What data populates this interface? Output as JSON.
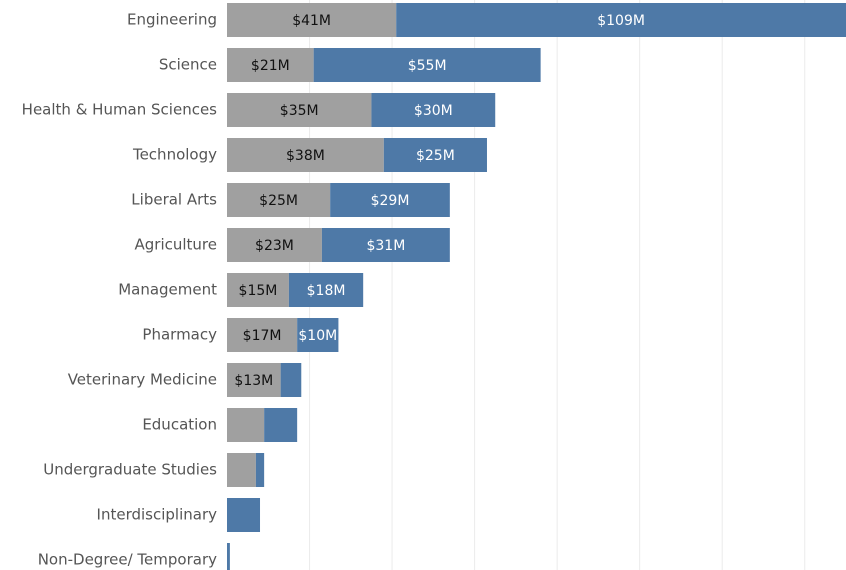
{
  "chart_data": {
    "type": "stacked-bar-horizontal",
    "categories": [
      "Engineering",
      "Science",
      "Health & Human Sciences",
      "Technology",
      "Liberal Arts",
      "Agriculture",
      "Management",
      "Pharmacy",
      "Veterinary Medicine",
      "Education",
      "Undergraduate Studies",
      "Interdisciplinary",
      "Non-Degree/ Temporary"
    ],
    "series": [
      {
        "color": "#a0a0a0",
        "values": [
          41,
          21,
          35,
          38,
          25,
          23,
          15,
          17,
          13,
          9,
          7,
          0,
          0
        ],
        "value_labels": [
          "$41M",
          "$21M",
          "$35M",
          "$38M",
          "$25M",
          "$23M",
          "$15M",
          "$17M",
          "$13M",
          null,
          null,
          null,
          null
        ]
      },
      {
        "color": "#4e79a7",
        "values": [
          109,
          55,
          30,
          25,
          29,
          31,
          18,
          10,
          5,
          8,
          2,
          8,
          0.7
        ],
        "value_labels": [
          "$109M",
          "$55M",
          "$30M",
          "$25M",
          "$29M",
          "$31M",
          "$18M",
          "$10M",
          null,
          null,
          null,
          null,
          null
        ]
      }
    ],
    "xlim": [
      0,
      150
    ],
    "xticks": [
      20,
      40,
      60,
      80,
      100,
      120,
      140
    ],
    "grid": true
  }
}
